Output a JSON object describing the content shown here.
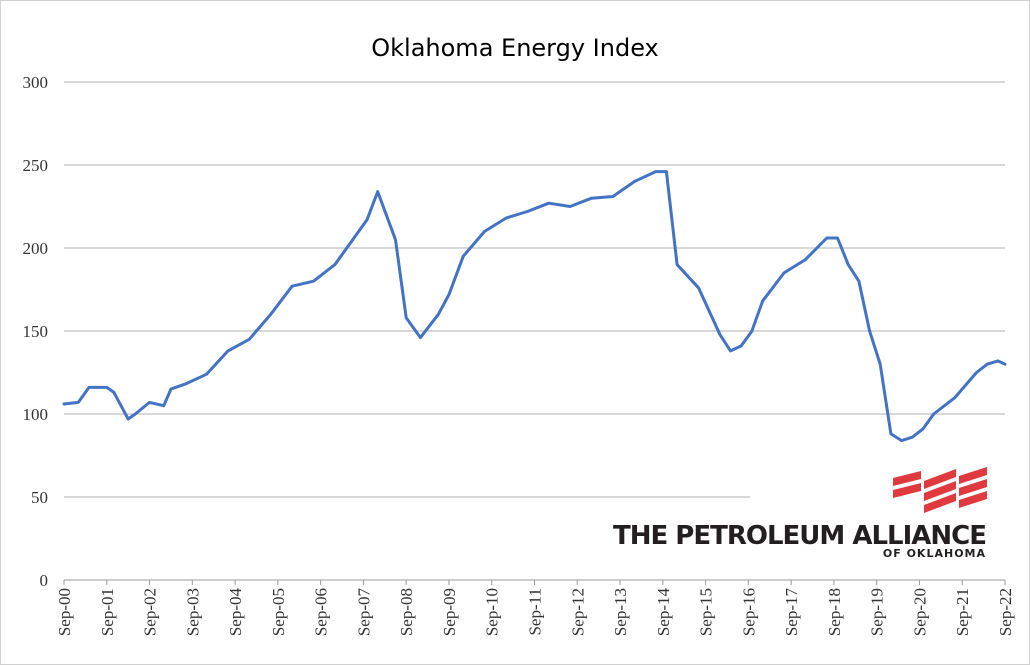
{
  "chart_data": {
    "type": "line",
    "title": "Oklahoma Energy Index",
    "ylim": [
      0,
      300
    ],
    "yticks": [
      "0",
      "50",
      "100",
      "150",
      "200",
      "250",
      "300"
    ],
    "xticks": [
      "Sep-00",
      "Sep-01",
      "Sep-02",
      "Sep-03",
      "Sep-04",
      "Sep-05",
      "Sep-06",
      "Sep-07",
      "Sep-08",
      "Sep-09",
      "Sep-10",
      "Sep-11",
      "Sep-12",
      "Sep-13",
      "Sep-14",
      "Sep-15",
      "Sep-16",
      "Sep-17",
      "Sep-18",
      "Sep-19",
      "Sep-20",
      "Sep-21",
      "Sep-22"
    ],
    "grid": true,
    "legend": "none",
    "series": [
      {
        "color": "#4472c4",
        "x": [
          "Sep-00",
          "Jan-01",
          "Apr-01",
          "Sep-01",
          "Nov-01",
          "Jan-02",
          "Mar-02",
          "May-02",
          "Sep-02",
          "Jan-03",
          "Mar-03",
          "Jul-03",
          "Jan-04",
          "Jul-04",
          "Jan-05",
          "Jul-05",
          "Jan-06",
          "Jul-06",
          "Jan-07",
          "Jul-07",
          "Oct-07",
          "Jan-08",
          "Jun-08",
          "Sep-08",
          "Jan-09",
          "Jun-09",
          "Sep-09",
          "Jan-10",
          "Jul-10",
          "Jan-11",
          "Jul-11",
          "Jan-12",
          "Jul-12",
          "Jan-13",
          "Jul-13",
          "Jan-14",
          "Jul-14",
          "Oct-14",
          "Jan-15",
          "Jul-15",
          "Jan-16",
          "Apr-16",
          "Jul-16",
          "Oct-16",
          "Jan-17",
          "Jul-17",
          "Jan-18",
          "Jul-18",
          "Oct-18",
          "Jan-19",
          "Apr-19",
          "Jul-19",
          "Oct-19",
          "Jan-20",
          "Apr-20",
          "Jul-20",
          "Oct-20",
          "Jan-21",
          "Jul-21",
          "Jan-22",
          "Apr-22",
          "Jul-22",
          "Sep-22"
        ],
        "y": [
          106,
          107,
          116,
          116,
          113,
          105,
          97,
          100,
          107,
          105,
          115,
          118,
          124,
          138,
          145,
          160,
          177,
          180,
          190,
          208,
          217,
          234,
          205,
          158,
          146,
          160,
          172,
          195,
          210,
          218,
          222,
          227,
          225,
          230,
          231,
          240,
          246,
          246,
          190,
          176,
          148,
          138,
          141,
          150,
          168,
          185,
          193,
          206,
          206,
          190,
          180,
          150,
          130,
          88,
          84,
          86,
          91,
          100,
          110,
          125,
          130,
          132,
          130
        ]
      }
    ]
  },
  "logo": {
    "main_text": "THE PETROLEUM ALLIANCE",
    "sub_text": "OF OKLAHOMA",
    "color": "#e03a3e"
  }
}
